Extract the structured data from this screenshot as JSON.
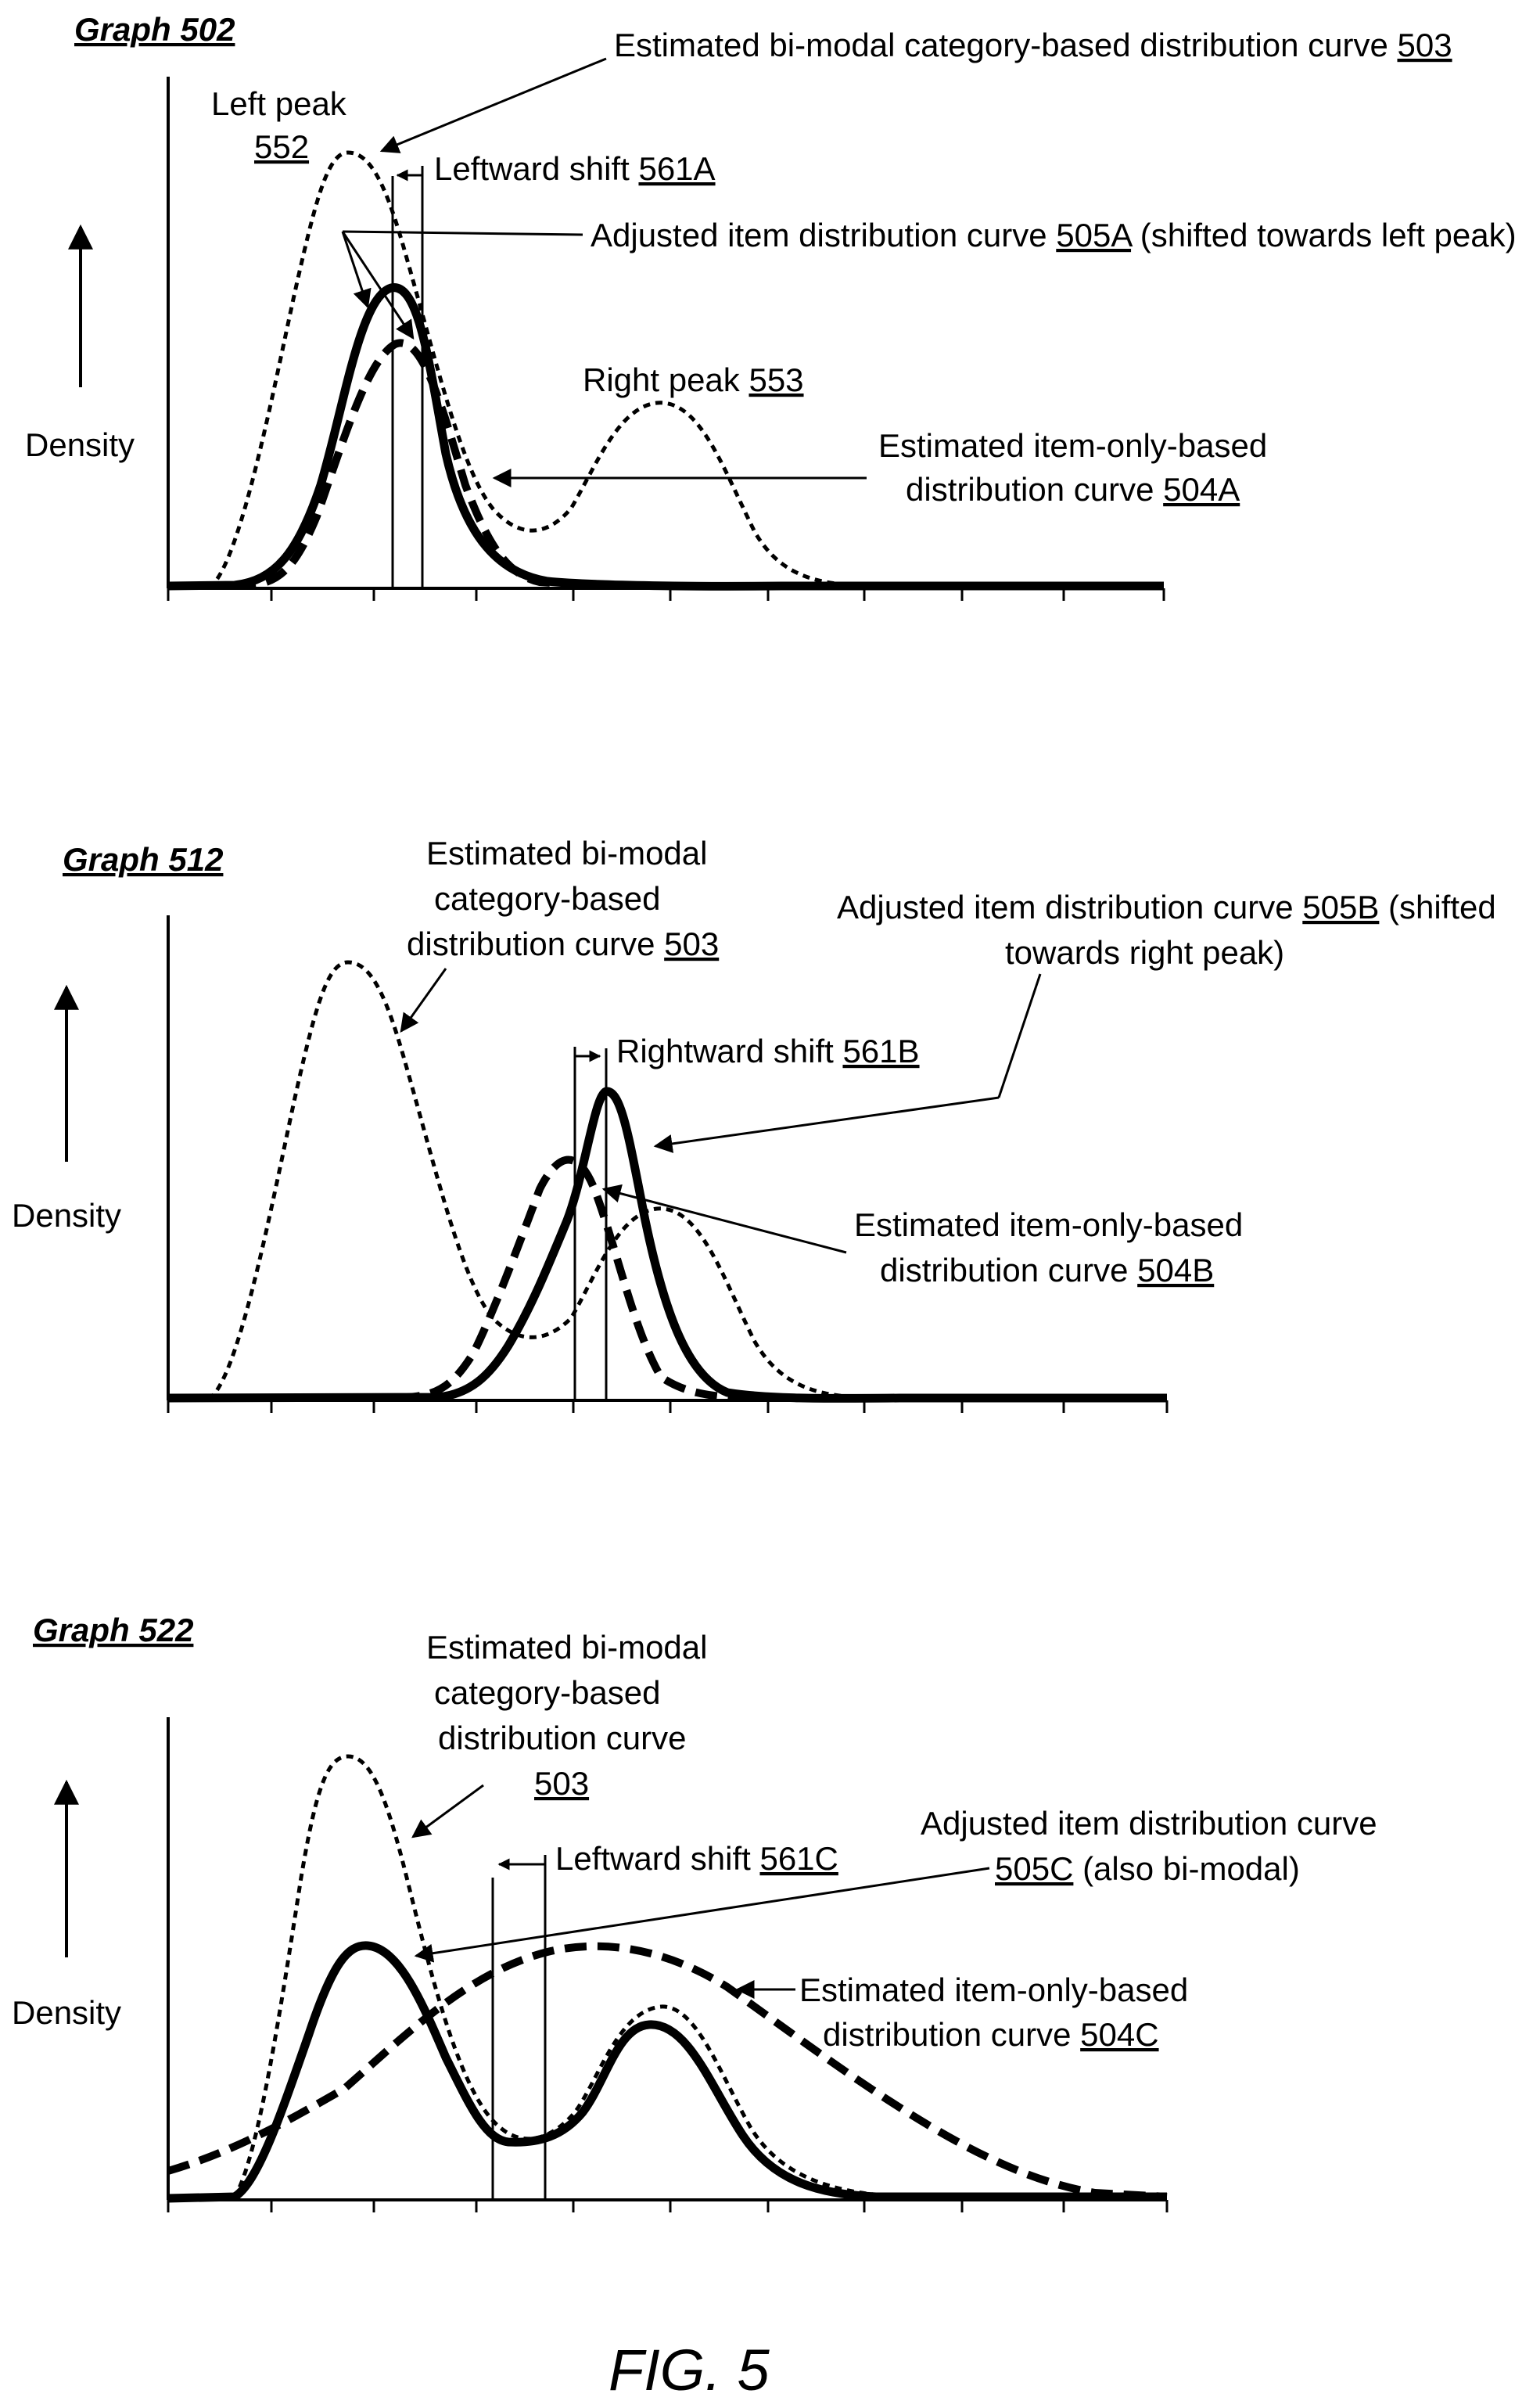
{
  "figure_caption": "FIG. 5",
  "graphs": [
    {
      "title": "Graph 502",
      "ylabel": "Density",
      "labels": {
        "cat": {
          "text": "Estimated bi-modal category-based distribution curve ",
          "ref": "503"
        },
        "left_peak_1": "Left peak",
        "left_peak_ref": "552",
        "shift": {
          "text": "Leftward shift ",
          "ref": "561A"
        },
        "adj": {
          "text": "Adjusted item distribution curve ",
          "ref": "505A",
          "tail": " (shifted towards left peak)"
        },
        "right_peak": {
          "text": "Right peak ",
          "ref": "553"
        },
        "item_1": "Estimated item-only-based",
        "item_2": {
          "text": "distribution curve ",
          "ref": "504A"
        }
      }
    },
    {
      "title": "Graph 512",
      "ylabel": "Density",
      "labels": {
        "cat_1": "Estimated bi-modal",
        "cat_2": "category-based",
        "cat_3": {
          "text": "distribution curve ",
          "ref": "503"
        },
        "adj_1": {
          "text": "Adjusted item distribution curve ",
          "ref": "505B",
          "tail": " (shifted"
        },
        "adj_2": "towards right peak)",
        "shift": {
          "text": "Rightward shift ",
          "ref": "561B"
        },
        "item_1": "Estimated item-only-based",
        "item_2": {
          "text": "distribution curve ",
          "ref": "504B"
        }
      }
    },
    {
      "title": "Graph 522",
      "ylabel": "Density",
      "labels": {
        "cat_1": "Estimated bi-modal",
        "cat_2": "category-based",
        "cat_3": "distribution curve",
        "cat_ref": "503",
        "shift": {
          "text": "Leftward shift ",
          "ref": "561C"
        },
        "adj_1": "Adjusted item distribution curve",
        "adj_2": {
          "ref": "505C",
          "tail": " (also bi-modal)"
        },
        "item_1": "Estimated item-only-based",
        "item_2": {
          "text": "distribution curve ",
          "ref": "504C"
        }
      }
    }
  ]
}
